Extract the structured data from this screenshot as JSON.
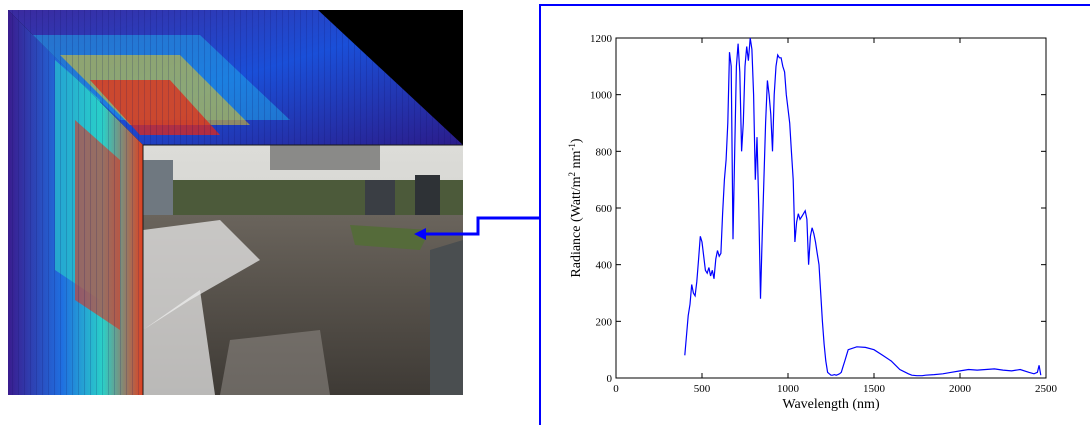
{
  "image": {
    "description_icon": "hyperspectral-cube-icon"
  },
  "chart_data": {
    "type": "line",
    "title": "",
    "xlabel": "Wavelength (nm)",
    "ylabel": {
      "main": "Radiance (Watt/m",
      "sup1": "2",
      "mid": " nm",
      "sup2": "-1",
      "end": ")"
    },
    "xlim": [
      0,
      2500
    ],
    "ylim": [
      0,
      1200
    ],
    "xticks": [
      "0",
      "500",
      "1000",
      "1500",
      "2000",
      "2500"
    ],
    "xtick_values": [
      0,
      500,
      1000,
      1500,
      2000,
      2500
    ],
    "yticks": [
      "0",
      "200",
      "400",
      "600",
      "800",
      "1000",
      "1200"
    ],
    "ytick_values": [
      0,
      200,
      400,
      600,
      800,
      1000,
      1200
    ],
    "grid": false,
    "legend": "none",
    "colors": {
      "line": "#0000ff",
      "box": "#0000ff",
      "connector": "#0000ff"
    },
    "series": [
      {
        "x": [
          400,
          410,
          420,
          430,
          440,
          450,
          460,
          470,
          480,
          490,
          500,
          510,
          520,
          530,
          540,
          550,
          560,
          570,
          580,
          590,
          600,
          610,
          620,
          630,
          640,
          650,
          660,
          670,
          680,
          690,
          700,
          710,
          720,
          730,
          740,
          750,
          760,
          770,
          780,
          790,
          800,
          810,
          820,
          830,
          840,
          850,
          860,
          870,
          880,
          890,
          900,
          910,
          920,
          930,
          940,
          950,
          960,
          970,
          980,
          990,
          1000,
          1010,
          1020,
          1030,
          1040,
          1050,
          1060,
          1070,
          1080,
          1090,
          1100,
          1110,
          1120,
          1130,
          1140,
          1150,
          1160,
          1170,
          1180,
          1190,
          1200,
          1210,
          1220,
          1230,
          1240,
          1250,
          1260,
          1270,
          1280,
          1290,
          1300,
          1310,
          1320,
          1330,
          1340,
          1350,
          1400,
          1450,
          1500,
          1550,
          1600,
          1650,
          1700,
          1720,
          1750,
          1780,
          1800,
          1850,
          1900,
          1950,
          2000,
          2050,
          2100,
          2150,
          2200,
          2250,
          2300,
          2350,
          2400,
          2430,
          2450,
          2460,
          2470
        ],
        "y": [
          80,
          150,
          220,
          260,
          330,
          300,
          290,
          340,
          420,
          500,
          480,
          430,
          380,
          370,
          390,
          360,
          380,
          350,
          420,
          450,
          430,
          440,
          580,
          700,
          770,
          900,
          1150,
          1100,
          490,
          800,
          1100,
          1180,
          1080,
          800,
          900,
          1100,
          1170,
          1120,
          1200,
          1160,
          1000,
          700,
          850,
          600,
          280,
          500,
          700,
          900,
          1050,
          1000,
          930,
          800,
          1000,
          1100,
          1140,
          1130,
          1130,
          1100,
          1080,
          1000,
          950,
          900,
          800,
          700,
          480,
          550,
          580,
          560,
          570,
          580,
          590,
          560,
          400,
          500,
          530,
          510,
          480,
          440,
          400,
          300,
          200,
          120,
          60,
          20,
          15,
          10,
          10,
          12,
          10,
          12,
          15,
          20,
          40,
          60,
          80,
          100,
          110,
          108,
          100,
          80,
          60,
          30,
          15,
          10,
          8,
          8,
          10,
          12,
          15,
          20,
          25,
          30,
          28,
          30,
          32,
          28,
          25,
          30,
          20,
          15,
          20,
          45,
          10
        ]
      }
    ]
  }
}
